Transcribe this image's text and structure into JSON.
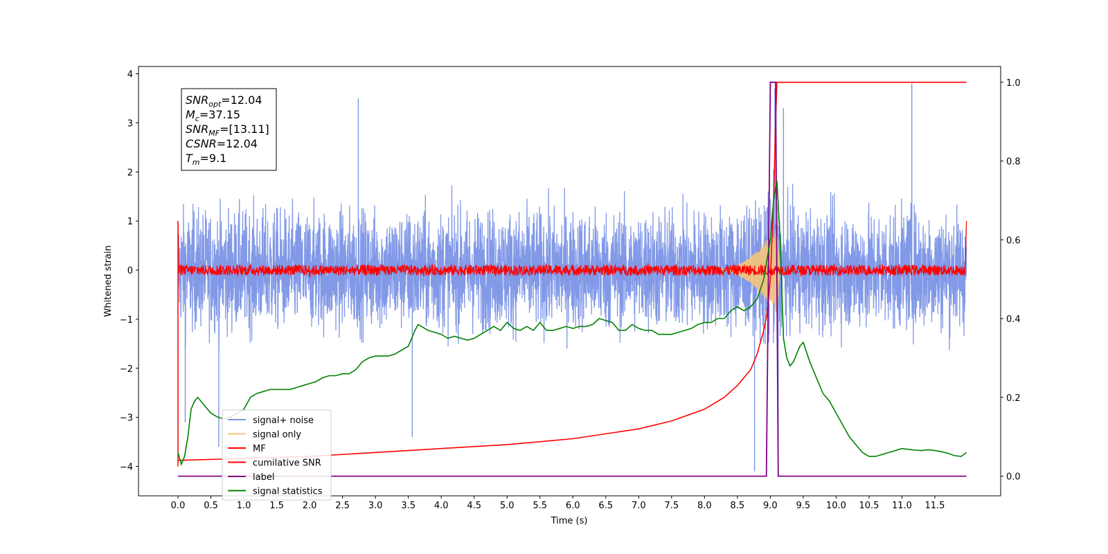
{
  "chart_data": {
    "type": "line",
    "xlabel": "Time (s)",
    "ylabel_left": "Whitened strain",
    "xlim": [
      -0.6,
      12.5
    ],
    "ylim_left": [
      -4.6,
      4.15
    ],
    "ylim_right": [
      -0.05,
      1.04
    ],
    "x_ticks": [
      "0.0",
      "0.5",
      "1.0",
      "1.5",
      "2.0",
      "2.5",
      "3.0",
      "3.5",
      "4.0",
      "4.5",
      "5.0",
      "5.5",
      "6.0",
      "6.5",
      "7.0",
      "7.5",
      "8.0",
      "8.5",
      "9.0",
      "9.5",
      "10.0",
      "10.5",
      "11.0",
      "11.5"
    ],
    "y_ticks_left": [
      "−4",
      "−3",
      "−2",
      "−1",
      "0",
      "1",
      "2",
      "3",
      "4"
    ],
    "y_ticks_right": [
      "0.0",
      "0.2",
      "0.4",
      "0.6",
      "0.8",
      "1.0"
    ],
    "info_box": [
      {
        "main": "SNR",
        "sub": "opt",
        "rest": "=12.04"
      },
      {
        "main": "M",
        "sub": "c",
        "rest": "=37.15"
      },
      {
        "main": "SNR",
        "sub": "MF",
        "rest": "=[13.11]"
      },
      {
        "main": "CSNR",
        "sub": "",
        "rest": "=12.04"
      },
      {
        "main": "T",
        "sub": "m",
        "rest": "=9.1"
      }
    ],
    "legend": {
      "placement": "lower-left",
      "entries": [
        {
          "label": "signal+ noise",
          "color": "#7b94e6"
        },
        {
          "label": "signal only",
          "color": "#f5c57a"
        },
        {
          "label": "MF",
          "color": "#ff0000"
        },
        {
          "label": "cumilative SNR",
          "color": "#ff0000"
        },
        {
          "label": "label",
          "color": "#800080"
        },
        {
          "label": "signal statistics",
          "color": "#008000"
        }
      ]
    },
    "series": [
      {
        "name": "signal+ noise",
        "axis": "left",
        "color": "#7b94e6",
        "style": "dense white noise, amplitude about ±1.7 with spikes to ±3.4",
        "spikes": [
          [
            0.11,
            -3.1
          ],
          [
            0.62,
            -3.6
          ],
          [
            2.74,
            3.5
          ],
          [
            3.56,
            -3.4
          ],
          [
            8.76,
            -4.1
          ],
          [
            9.07,
            3.7
          ],
          [
            9.12,
            -4.1
          ],
          [
            9.2,
            3.3
          ],
          [
            11.15,
            3.8
          ]
        ]
      },
      {
        "name": "signal only",
        "axis": "left",
        "color": "#f5c57a",
        "style": "chirp rising from 8.3 s to merger at 9.1 s, peak about ±0.9"
      },
      {
        "name": "MF",
        "axis": "left",
        "color": "#ff0000",
        "style": "noise band about ±0.1 around 0, edges spike to ±1.0"
      },
      {
        "name": "cumilative SNR",
        "axis": "right",
        "color": "#ff0000",
        "x": [
          0.0,
          1.0,
          2.0,
          3.0,
          4.0,
          5.0,
          6.0,
          7.0,
          7.5,
          8.0,
          8.3,
          8.5,
          8.7,
          8.8,
          8.9,
          8.95,
          9.0,
          9.05,
          9.08,
          9.1,
          11.98
        ],
        "y": [
          0.04,
          0.045,
          0.05,
          0.06,
          0.07,
          0.08,
          0.095,
          0.12,
          0.14,
          0.17,
          0.2,
          0.23,
          0.27,
          0.31,
          0.37,
          0.41,
          0.5,
          0.7,
          0.9,
          1.0,
          1.0
        ]
      },
      {
        "name": "label",
        "axis": "right",
        "color": "#800080",
        "x": [
          0.0,
          8.94,
          9.0,
          9.08,
          9.12,
          11.98
        ],
        "y": [
          0.0,
          0.0,
          1.0,
          1.0,
          0.0,
          0.0
        ]
      },
      {
        "name": "signal statistics",
        "axis": "right",
        "color": "#008000",
        "x": [
          0.0,
          0.05,
          0.1,
          0.15,
          0.2,
          0.25,
          0.3,
          0.35,
          0.4,
          0.5,
          0.6,
          0.7,
          0.8,
          0.9,
          1.0,
          1.1,
          1.2,
          1.3,
          1.4,
          1.5,
          1.6,
          1.7,
          1.8,
          1.9,
          2.0,
          2.1,
          2.2,
          2.3,
          2.4,
          2.5,
          2.6,
          2.7,
          2.8,
          2.9,
          3.0,
          3.1,
          3.2,
          3.3,
          3.4,
          3.5,
          3.6,
          3.65,
          3.7,
          3.8,
          3.9,
          4.0,
          4.1,
          4.2,
          4.3,
          4.4,
          4.5,
          4.6,
          4.7,
          4.8,
          4.9,
          5.0,
          5.1,
          5.2,
          5.3,
          5.4,
          5.5,
          5.6,
          5.7,
          5.8,
          5.9,
          6.0,
          6.1,
          6.2,
          6.3,
          6.4,
          6.5,
          6.6,
          6.7,
          6.8,
          6.9,
          7.0,
          7.1,
          7.2,
          7.3,
          7.4,
          7.5,
          7.6,
          7.7,
          7.8,
          7.9,
          8.0,
          8.1,
          8.2,
          8.3,
          8.4,
          8.5,
          8.6,
          8.7,
          8.8,
          8.9,
          9.0,
          9.05,
          9.1,
          9.15,
          9.2,
          9.25,
          9.3,
          9.35,
          9.4,
          9.45,
          9.5,
          9.6,
          9.7,
          9.8,
          9.9,
          10.0,
          10.1,
          10.2,
          10.3,
          10.4,
          10.5,
          10.6,
          10.7,
          10.8,
          10.9,
          11.0,
          11.1,
          11.2,
          11.3,
          11.4,
          11.5,
          11.6,
          11.7,
          11.8,
          11.9,
          11.98
        ],
        "y": [
          0.06,
          0.03,
          0.05,
          0.1,
          0.17,
          0.19,
          0.2,
          0.19,
          0.18,
          0.16,
          0.15,
          0.145,
          0.15,
          0.16,
          0.17,
          0.2,
          0.21,
          0.215,
          0.22,
          0.22,
          0.22,
          0.22,
          0.225,
          0.23,
          0.235,
          0.24,
          0.25,
          0.255,
          0.255,
          0.26,
          0.26,
          0.27,
          0.29,
          0.3,
          0.305,
          0.305,
          0.305,
          0.31,
          0.32,
          0.33,
          0.37,
          0.385,
          0.38,
          0.37,
          0.365,
          0.36,
          0.35,
          0.355,
          0.35,
          0.345,
          0.35,
          0.36,
          0.37,
          0.38,
          0.37,
          0.39,
          0.375,
          0.37,
          0.38,
          0.37,
          0.39,
          0.37,
          0.37,
          0.375,
          0.38,
          0.375,
          0.38,
          0.38,
          0.385,
          0.4,
          0.395,
          0.39,
          0.37,
          0.37,
          0.385,
          0.375,
          0.37,
          0.37,
          0.36,
          0.36,
          0.36,
          0.365,
          0.37,
          0.375,
          0.385,
          0.39,
          0.39,
          0.4,
          0.4,
          0.42,
          0.43,
          0.42,
          0.43,
          0.45,
          0.5,
          0.6,
          0.7,
          0.75,
          0.6,
          0.35,
          0.3,
          0.28,
          0.29,
          0.31,
          0.33,
          0.34,
          0.29,
          0.25,
          0.21,
          0.19,
          0.16,
          0.13,
          0.1,
          0.08,
          0.06,
          0.05,
          0.05,
          0.055,
          0.06,
          0.065,
          0.07,
          0.068,
          0.066,
          0.065,
          0.067,
          0.065,
          0.062,
          0.058,
          0.052,
          0.05,
          0.06
        ]
      }
    ]
  }
}
